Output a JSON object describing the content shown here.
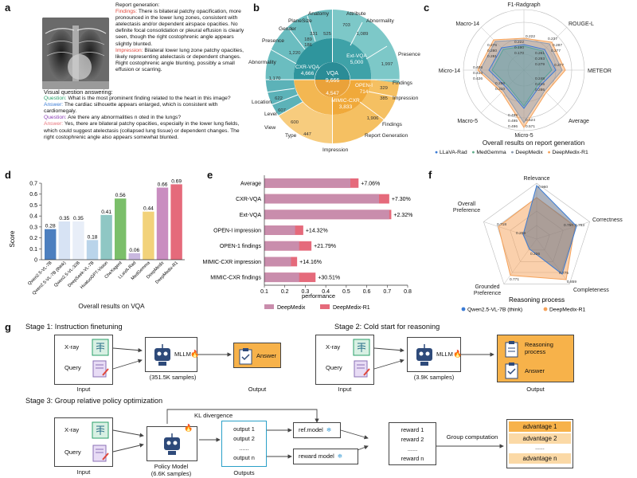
{
  "panel_a": {
    "letter": "a",
    "report_heading": "Report generation:",
    "findings_label": "Findings:",
    "findings_text": " There is bilateral patchy opacification, more pronounced in the lower lung zones, consistent with atelectasis and/or dependent airspace opacities. No definite focal consolidation or pleural effusion is clearly seen, though the right costophrenic angle appears slightly blunted.",
    "impression_label": "Impression:",
    "impression_text": " Bilateral lower lung zone patchy opacities, likely representing atelectasis or dependent changes. Right costophrenic angle blunting, possibly a small effusion or scarring.",
    "vqa_heading": "Visual question answering:",
    "q1_label": "Question:",
    "q1_text": " What is the most prominent finding related to the heart in this image?",
    "a1_label": "Answer:",
    "a1_text": " The cardiac silhouette appears enlarged, which is consistent with cardiomegaly.",
    "q2_label": "Question:",
    "q2_text": " Are there any abnormalities n oted in the lungs?",
    "a2_label": "Answer:",
    "a2_text": " Yes, there are bilateral patchy opacities, especially in the lower lung fields, which could suggest atelectasis (collapsed lung tissue) or dependent changes. The right costophrenic angle also appears somewhat blunted."
  },
  "panel_b": {
    "letter": "b",
    "center_label": "VQA",
    "center_value": "9,666",
    "report_center_label": "",
    "inner": [
      {
        "label": "Ext-VQA",
        "value": "5,000"
      },
      {
        "label": "CXR-VQA",
        "value": "4,666"
      },
      {
        "label": "MIMIC-CXR",
        "value": "3,833"
      },
      {
        "label": "OPEN-I",
        "value": "714"
      },
      {
        "label": "",
        "value": "4,547"
      }
    ],
    "outer_labels": [
      "Attribute",
      "Abnormality",
      "Presence",
      "Findings",
      "Impression",
      "Report Generation",
      "Findings",
      "Impression",
      "Type",
      "View",
      "Level",
      "Location",
      "Abnormality",
      "Presence",
      "Gender",
      "Plane",
      "Size",
      "Anatomy"
    ],
    "outer_values": [
      "703",
      "1,089",
      "1,997",
      "329",
      "385",
      "1,906",
      "1,927",
      "447",
      "600",
      "607",
      "622",
      "1,170",
      "1,220",
      "186",
      "189",
      "331",
      "525"
    ]
  },
  "panel_c": {
    "letter": "c",
    "title": "Overall results on report generation",
    "axes": [
      "F1-Radgraph",
      "ROUGE-L",
      "METEOR",
      "Average",
      "Micro-5",
      "Macro-5",
      "Micro-14",
      "Macro-14"
    ],
    "legend": [
      {
        "name": "LLaVA-Rad",
        "color": "#3a7bd5"
      },
      {
        "name": "MedGemma",
        "color": "#5fae8a"
      },
      {
        "name": "DeepMedix",
        "color": "#8d9bb0"
      },
      {
        "name": "DeepMedix-R1",
        "color": "#f5a25a"
      }
    ],
    "ring_values": [
      "0.222",
      "0.237",
      "0.287",
      "0.277",
      "0.277",
      "0.496",
      "0.495",
      "0.498",
      "0.571",
      "0.524",
      "0.406",
      "0.414",
      "0.426",
      "0.276",
      "0.280",
      "0.281",
      "0.222",
      "0.190",
      "0.170",
      "0.261",
      "0.293",
      "0.279",
      "0.248",
      "0.215",
      "0.286",
      "0.256",
      "0.310"
    ]
  },
  "panel_d": {
    "letter": "d",
    "title": "Overall results on VQA",
    "ylabel": "Score",
    "chart_data": {
      "type": "bar",
      "categories": [
        "Qwen2.5-VL-7B",
        "Qwen2.5-VL-7B (think)",
        "Qwen2.5-VL-32B",
        "DeepSeek-VL-7B",
        "HuatuoGPT-Vision",
        "CheXagent",
        "LLaVA-Rad",
        "MedGemma",
        "DeepMedix",
        "DeepMedix-R1"
      ],
      "values": [
        0.28,
        0.35,
        0.35,
        0.18,
        0.41,
        0.56,
        0.06,
        0.44,
        0.66,
        0.69
      ],
      "value_labels": [
        "0.28",
        "0.35",
        "0.35",
        "0.18",
        "0.41",
        "0.56",
        "0.06",
        "0.44",
        "0.66",
        "0.69"
      ],
      "colors": [
        "#4c7fbf",
        "#d7e3f4",
        "#e8eef8",
        "#b9d4ea",
        "#8fc7c4",
        "#7bbf6a",
        "#c9b8df",
        "#f2d27a",
        "#c98dc0",
        "#e56a7b"
      ],
      "ylim": [
        0,
        0.7
      ],
      "yticks": [
        "0",
        "0.1",
        "0.2",
        "0.3",
        "0.4",
        "0.5",
        "0.6",
        "0.7"
      ]
    }
  },
  "panel_e": {
    "letter": "e",
    "xlabel": "performance",
    "legend": [
      {
        "name": "DeepMedix",
        "color": "#c98dac"
      },
      {
        "name": "DeepMedix-R1",
        "color": "#e56a7b"
      }
    ],
    "chart_data": {
      "type": "bar",
      "orientation": "horizontal",
      "categories": [
        "Average",
        "CXR-VQA",
        "Ext-VQA",
        "OPEN-I impression",
        "OPEN-1 findings",
        "MIMIC-CXR impression",
        "MIMIC-CXR findings"
      ],
      "series": [
        {
          "name": "DeepMedix",
          "values": [
            0.52,
            0.66,
            0.71,
            0.25,
            0.27,
            0.23,
            0.27
          ]
        },
        {
          "name": "DeepMedix-R1",
          "values": [
            0.56,
            0.71,
            0.72,
            0.29,
            0.33,
            0.26,
            0.35
          ]
        }
      ],
      "gain_labels": [
        "+7.06%",
        "+7.30%",
        "+2.32%",
        "+14.32%",
        "+21.79%",
        "+14.16%",
        "+30.51%"
      ],
      "xlim": [
        0.1,
        0.8
      ],
      "xticks": [
        "0.1",
        "0.2",
        "0.3",
        "0.4",
        "0.5",
        "0.6",
        "0.7",
        "0.8"
      ]
    }
  },
  "panel_f": {
    "letter": "f",
    "title": "Reasoning process",
    "axes": [
      "Relevance",
      "Correctness",
      "Completeness",
      "Grounded Preference",
      "Overall Preference"
    ],
    "axis_lines": [
      [
        "Relevance"
      ],
      [
        "Correctness"
      ],
      [
        "Completeness"
      ],
      [
        "Grounded",
        "Preference"
      ],
      [
        "Overall",
        "Preference"
      ]
    ],
    "legend": [
      {
        "name": "Qwen2.5-VL-7B (think)",
        "color": "#3a7bd5"
      },
      {
        "name": "DeepMedix-R1",
        "color": "#f5a25a"
      }
    ],
    "value_labels": [
      "0.960",
      "0.753",
      "0.750",
      "0.775",
      "0.859",
      "0.771",
      "0.226",
      "0.259",
      "0.718"
    ]
  },
  "panel_g": {
    "letter": "g",
    "stage1_title": "Stage 1: Instruction finetuning",
    "stage2_title": "Stage 2: Cold start for reasoning",
    "stage3_title": "Stage 3:  Group relative policy optimization",
    "xray": "X-ray",
    "query": "Query",
    "mllm": "MLLM",
    "answer": "Answer",
    "reasoning_process": "Reasoning process",
    "input": "Input",
    "output": "Output",
    "outputs": "Outputs",
    "samples1": "(351.5K samples)",
    "samples2": "(3.9K samples)",
    "policy_model": "Policy Model",
    "policy_samples": "(6.6K samples)",
    "kl": "KL divergence",
    "ref_model": "ref.model",
    "reward_model": "reward model",
    "outputs_list": [
      "output 1",
      "output 2",
      "......",
      "output n"
    ],
    "rewards_list": [
      "reward 1",
      "reward 2",
      "......",
      "reward n"
    ],
    "group_computation": "Group computation",
    "advantages": [
      "advantage 1",
      "advantage 2",
      "......",
      "advantage n"
    ]
  }
}
